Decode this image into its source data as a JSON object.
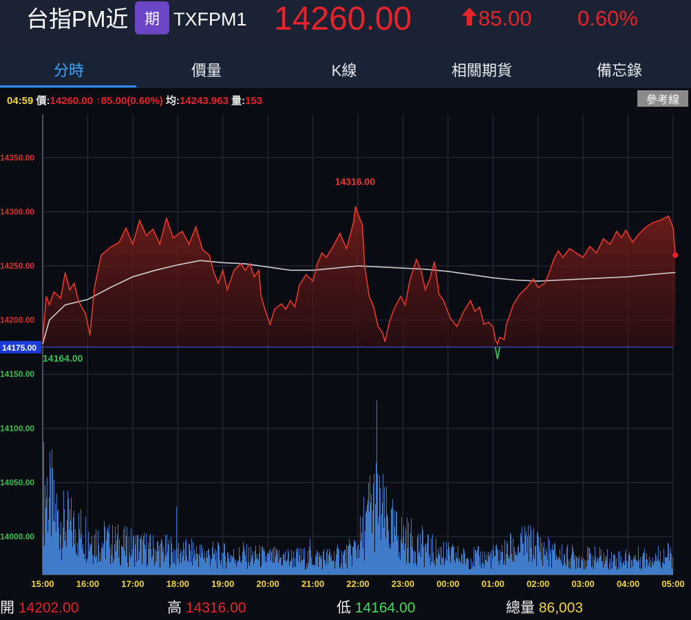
{
  "header": {
    "title": "台指PM近",
    "badge": "期",
    "code": "TXFPM1",
    "price": "14260.00",
    "change": "85.00",
    "change_pct": "0.60%",
    "up_color": "#e8232b"
  },
  "tabs": [
    {
      "label": "分時",
      "active": true
    },
    {
      "label": "價量",
      "active": false
    },
    {
      "label": "K線",
      "active": false
    },
    {
      "label": "相關期貨",
      "active": false
    },
    {
      "label": "備忘錄",
      "active": false
    }
  ],
  "info_bar": {
    "time": "04:59",
    "price_label": "價:",
    "price": "14260.00",
    "change": "↑85.00(0.60%)",
    "avg_label": "均:",
    "avg": "14243.963",
    "vol_label": "量:",
    "vol": "153"
  },
  "ref_button": "參考線",
  "footer": {
    "open_label": "開",
    "open": "14202.00",
    "high_label": "高",
    "high": "14316.00",
    "low_label": "低",
    "low": "14164.00",
    "vol_label": "總量",
    "vol": "86,003"
  },
  "chart_data": {
    "type": "line",
    "x_ticks": [
      "15:00",
      "16:00",
      "17:00",
      "18:00",
      "19:00",
      "20:00",
      "21:00",
      "22:00",
      "23:00",
      "00:00",
      "01:00",
      "02:00",
      "03:00",
      "04:00",
      "05:00"
    ],
    "y_ticks": [
      "14350.00",
      "14300.00",
      "14250.00",
      "14200.00",
      "14175.00",
      "14150.00",
      "14100.00",
      "14050.00",
      "14000.00"
    ],
    "reference_price": 14175,
    "ylim": [
      13965,
      14390
    ],
    "high_marker": "14316.00",
    "low_marker": "14164.00",
    "price_color": "#e8382c",
    "avg_color": "#cfcfcf",
    "volume_color": "#3f7bc9",
    "series": [
      {
        "kind": "price",
        "points": [
          [
            0,
            14180
          ],
          [
            0.08,
            14222
          ],
          [
            0.15,
            14214
          ],
          [
            0.25,
            14226
          ],
          [
            0.4,
            14220
          ],
          [
            0.5,
            14244
          ],
          [
            0.6,
            14228
          ],
          [
            0.7,
            14234
          ],
          [
            0.8,
            14217
          ],
          [
            0.95,
            14206
          ],
          [
            1.05,
            14186
          ],
          [
            1.15,
            14230
          ],
          [
            1.3,
            14260
          ],
          [
            1.5,
            14267
          ],
          [
            1.7,
            14272
          ],
          [
            1.85,
            14285
          ],
          [
            2.0,
            14270
          ],
          [
            2.15,
            14292
          ],
          [
            2.3,
            14278
          ],
          [
            2.45,
            14284
          ],
          [
            2.6,
            14270
          ],
          [
            2.75,
            14294
          ],
          [
            2.9,
            14276
          ],
          [
            3.1,
            14282
          ],
          [
            3.25,
            14270
          ],
          [
            3.4,
            14286
          ],
          [
            3.55,
            14265
          ],
          [
            3.7,
            14260
          ],
          [
            3.8,
            14244
          ],
          [
            3.9,
            14234
          ],
          [
            4.0,
            14246
          ],
          [
            4.1,
            14228
          ],
          [
            4.25,
            14246
          ],
          [
            4.4,
            14252
          ],
          [
            4.5,
            14246
          ],
          [
            4.6,
            14252
          ],
          [
            4.7,
            14240
          ],
          [
            4.8,
            14246
          ],
          [
            4.85,
            14222
          ],
          [
            4.95,
            14208
          ],
          [
            5.05,
            14196
          ],
          [
            5.15,
            14210
          ],
          [
            5.3,
            14215
          ],
          [
            5.4,
            14210
          ],
          [
            5.5,
            14218
          ],
          [
            5.6,
            14212
          ],
          [
            5.7,
            14232
          ],
          [
            5.85,
            14242
          ],
          [
            6.0,
            14236
          ],
          [
            6.1,
            14252
          ],
          [
            6.2,
            14262
          ],
          [
            6.3,
            14258
          ],
          [
            6.45,
            14268
          ],
          [
            6.6,
            14280
          ],
          [
            6.75,
            14266
          ],
          [
            6.9,
            14290
          ],
          [
            6.95,
            14305
          ],
          [
            7.0,
            14298
          ],
          [
            7.1,
            14288
          ],
          [
            7.15,
            14250
          ],
          [
            7.25,
            14222
          ],
          [
            7.35,
            14212
          ],
          [
            7.45,
            14194
          ],
          [
            7.55,
            14188
          ],
          [
            7.6,
            14180
          ],
          [
            7.7,
            14198
          ],
          [
            7.8,
            14210
          ],
          [
            7.95,
            14222
          ],
          [
            8.05,
            14214
          ],
          [
            8.15,
            14236
          ],
          [
            8.3,
            14256
          ],
          [
            8.4,
            14246
          ],
          [
            8.5,
            14228
          ],
          [
            8.6,
            14238
          ],
          [
            8.7,
            14254
          ],
          [
            8.8,
            14224
          ],
          [
            8.9,
            14218
          ],
          [
            9.05,
            14202
          ],
          [
            9.2,
            14194
          ],
          [
            9.35,
            14208
          ],
          [
            9.5,
            14218
          ],
          [
            9.6,
            14208
          ],
          [
            9.7,
            14212
          ],
          [
            9.8,
            14196
          ],
          [
            9.9,
            14198
          ],
          [
            10.0,
            14194
          ],
          [
            10.05,
            14182
          ],
          [
            10.1,
            14178
          ],
          [
            10.15,
            14184
          ],
          [
            10.25,
            14182
          ],
          [
            10.3,
            14196
          ],
          [
            10.45,
            14214
          ],
          [
            10.6,
            14224
          ],
          [
            10.75,
            14230
          ],
          [
            10.9,
            14238
          ],
          [
            11.0,
            14230
          ],
          [
            11.15,
            14234
          ],
          [
            11.25,
            14244
          ],
          [
            11.35,
            14256
          ],
          [
            11.45,
            14264
          ],
          [
            11.55,
            14258
          ],
          [
            11.7,
            14266
          ],
          [
            11.85,
            14262
          ],
          [
            12.0,
            14258
          ],
          [
            12.15,
            14268
          ],
          [
            12.3,
            14262
          ],
          [
            12.45,
            14275
          ],
          [
            12.6,
            14270
          ],
          [
            12.75,
            14282
          ],
          [
            12.85,
            14276
          ],
          [
            12.95,
            14283
          ],
          [
            13.1,
            14272
          ],
          [
            13.25,
            14280
          ],
          [
            13.4,
            14286
          ],
          [
            13.55,
            14290
          ],
          [
            13.7,
            14292
          ],
          [
            13.8,
            14294
          ],
          [
            13.9,
            14296
          ],
          [
            14.0,
            14285
          ],
          [
            14.05,
            14260
          ]
        ]
      },
      {
        "kind": "average",
        "points": [
          [
            0,
            14178
          ],
          [
            0.15,
            14200
          ],
          [
            0.5,
            14214
          ],
          [
            1.0,
            14219
          ],
          [
            1.5,
            14230
          ],
          [
            2.0,
            14240
          ],
          [
            2.5,
            14246
          ],
          [
            3.0,
            14251
          ],
          [
            3.5,
            14255
          ],
          [
            4.0,
            14253
          ],
          [
            4.5,
            14252
          ],
          [
            5.0,
            14249
          ],
          [
            5.5,
            14246
          ],
          [
            6.0,
            14246
          ],
          [
            6.5,
            14248
          ],
          [
            7.0,
            14250
          ],
          [
            7.5,
            14249
          ],
          [
            8.0,
            14248
          ],
          [
            8.5,
            14247
          ],
          [
            9.0,
            14245
          ],
          [
            9.5,
            14242
          ],
          [
            10.0,
            14239
          ],
          [
            10.5,
            14237
          ],
          [
            11.0,
            14236
          ],
          [
            11.5,
            14237
          ],
          [
            12.0,
            14238
          ],
          [
            12.5,
            14239
          ],
          [
            13.0,
            14240
          ],
          [
            13.5,
            14242
          ],
          [
            14.05,
            14244
          ]
        ]
      },
      {
        "kind": "volume",
        "values": [
          70,
          62,
          50,
          45,
          42,
          40,
          38,
          36,
          34,
          32,
          30,
          28,
          28,
          26,
          26,
          25,
          24,
          24,
          23,
          22,
          22,
          21,
          21,
          20,
          20,
          20,
          19,
          19,
          18,
          18,
          18,
          17,
          17,
          17,
          16,
          16,
          16,
          16,
          15,
          15,
          15,
          15,
          15,
          15,
          14,
          14,
          14,
          14,
          14,
          14,
          14,
          14,
          14,
          14,
          14,
          14,
          14,
          14,
          15,
          15,
          16,
          18,
          22,
          30,
          42,
          55,
          60,
          52,
          44,
          38,
          34,
          32,
          30,
          28,
          26,
          24,
          22,
          20,
          19,
          18,
          17,
          16,
          15,
          15,
          14,
          14,
          14,
          14,
          14,
          15,
          16,
          17,
          18,
          20,
          22,
          24,
          26,
          25,
          24,
          22,
          20,
          18,
          17,
          16,
          15,
          15,
          14,
          14,
          14,
          14,
          14,
          14,
          13,
          13,
          13,
          13,
          13,
          13,
          14,
          14,
          14,
          15,
          15,
          16,
          16,
          16
        ]
      }
    ]
  }
}
